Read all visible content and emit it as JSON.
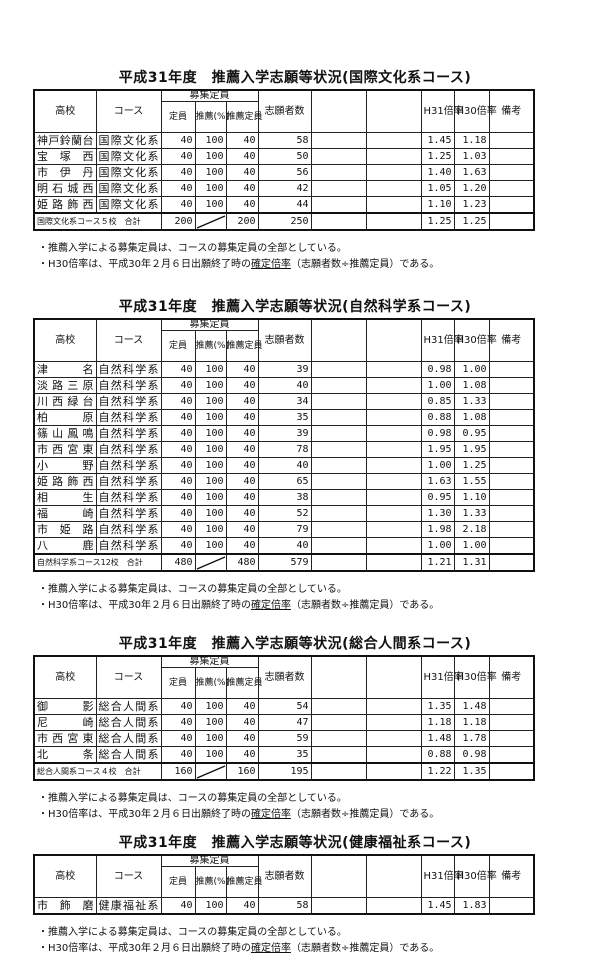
{
  "header": {
    "school": "高校",
    "course": "コース",
    "recruit_group": "募集定員",
    "capacity": "定員",
    "rec_pct": "推薦(%)",
    "rec_capacity": "推薦定員",
    "applicants": "志願者数",
    "h31": "H31倍率",
    "h30": "H30倍率",
    "remarks": "備考"
  },
  "notes": {
    "line1": "・推薦入学による募集定員は、コースの募集定員の全部としている。",
    "line2_prefix": "・H30倍率は、平成30年２月６日出願終了時の",
    "line2_underlined": "確定倍率",
    "line2_suffix": "（志願者数÷推薦定員）である。"
  },
  "sections": [
    {
      "title": "平成31年度　推薦入学志願等状況(国際文化系コース)",
      "rows": [
        {
          "school": "神戸鈴蘭台",
          "course": "国際文化系",
          "capacity": "40",
          "rec_pct": "100",
          "rec_capacity": "40",
          "applicants": "58",
          "h31": "1.45",
          "h30": "1.18"
        },
        {
          "school": "宝塚西",
          "course": "国際文化系",
          "capacity": "40",
          "rec_pct": "100",
          "rec_capacity": "40",
          "applicants": "50",
          "h31": "1.25",
          "h30": "1.03"
        },
        {
          "school": "市伊丹",
          "course": "国際文化系",
          "capacity": "40",
          "rec_pct": "100",
          "rec_capacity": "40",
          "applicants": "56",
          "h31": "1.40",
          "h30": "1.63"
        },
        {
          "school": "明石城西",
          "course": "国際文化系",
          "capacity": "40",
          "rec_pct": "100",
          "rec_capacity": "40",
          "applicants": "42",
          "h31": "1.05",
          "h30": "1.20"
        },
        {
          "school": "姫路飾西",
          "course": "国際文化系",
          "capacity": "40",
          "rec_pct": "100",
          "rec_capacity": "40",
          "applicants": "44",
          "h31": "1.10",
          "h30": "1.23"
        }
      ],
      "total": {
        "label": "国際文化系コース５校　合計",
        "capacity": "200",
        "rec_capacity": "200",
        "applicants": "250",
        "h31": "1.25",
        "h30": "1.25"
      }
    },
    {
      "title": "平成31年度　推薦入学志願等状況(自然科学系コース)",
      "rows": [
        {
          "school": "津名",
          "course": "自然科学系",
          "capacity": "40",
          "rec_pct": "100",
          "rec_capacity": "40",
          "applicants": "39",
          "h31": "0.98",
          "h30": "1.00"
        },
        {
          "school": "淡路三原",
          "course": "自然科学系",
          "capacity": "40",
          "rec_pct": "100",
          "rec_capacity": "40",
          "applicants": "40",
          "h31": "1.00",
          "h30": "1.08"
        },
        {
          "school": "川西緑台",
          "course": "自然科学系",
          "capacity": "40",
          "rec_pct": "100",
          "rec_capacity": "40",
          "applicants": "34",
          "h31": "0.85",
          "h30": "1.33"
        },
        {
          "school": "柏原",
          "course": "自然科学系",
          "capacity": "40",
          "rec_pct": "100",
          "rec_capacity": "40",
          "applicants": "35",
          "h31": "0.88",
          "h30": "1.08"
        },
        {
          "school": "篠山鳳鳴",
          "course": "自然科学系",
          "capacity": "40",
          "rec_pct": "100",
          "rec_capacity": "40",
          "applicants": "39",
          "h31": "0.98",
          "h30": "0.95"
        },
        {
          "school": "市西宮東",
          "course": "自然科学系",
          "capacity": "40",
          "rec_pct": "100",
          "rec_capacity": "40",
          "applicants": "78",
          "h31": "1.95",
          "h30": "1.95"
        },
        {
          "school": "小野",
          "course": "自然科学系",
          "capacity": "40",
          "rec_pct": "100",
          "rec_capacity": "40",
          "applicants": "40",
          "h31": "1.00",
          "h30": "1.25"
        },
        {
          "school": "姫路飾西",
          "course": "自然科学系",
          "capacity": "40",
          "rec_pct": "100",
          "rec_capacity": "40",
          "applicants": "65",
          "h31": "1.63",
          "h30": "1.55"
        },
        {
          "school": "相生",
          "course": "自然科学系",
          "capacity": "40",
          "rec_pct": "100",
          "rec_capacity": "40",
          "applicants": "38",
          "h31": "0.95",
          "h30": "1.10"
        },
        {
          "school": "福崎",
          "course": "自然科学系",
          "capacity": "40",
          "rec_pct": "100",
          "rec_capacity": "40",
          "applicants": "52",
          "h31": "1.30",
          "h30": "1.33"
        },
        {
          "school": "市姫路",
          "course": "自然科学系",
          "capacity": "40",
          "rec_pct": "100",
          "rec_capacity": "40",
          "applicants": "79",
          "h31": "1.98",
          "h30": "2.18"
        },
        {
          "school": "八鹿",
          "course": "自然科学系",
          "capacity": "40",
          "rec_pct": "100",
          "rec_capacity": "40",
          "applicants": "40",
          "h31": "1.00",
          "h30": "1.00"
        }
      ],
      "total": {
        "label": "自然科学系コース12校　合計",
        "capacity": "480",
        "rec_capacity": "480",
        "applicants": "579",
        "h31": "1.21",
        "h30": "1.31"
      }
    },
    {
      "title": "平成31年度　推薦入学志願等状況(総合人間系コース)",
      "rows": [
        {
          "school": "御影",
          "course": "総合人間系",
          "capacity": "40",
          "rec_pct": "100",
          "rec_capacity": "40",
          "applicants": "54",
          "h31": "1.35",
          "h30": "1.48"
        },
        {
          "school": "尼崎",
          "course": "総合人間系",
          "capacity": "40",
          "rec_pct": "100",
          "rec_capacity": "40",
          "applicants": "47",
          "h31": "1.18",
          "h30": "1.18"
        },
        {
          "school": "市西宮東",
          "course": "総合人間系",
          "capacity": "40",
          "rec_pct": "100",
          "rec_capacity": "40",
          "applicants": "59",
          "h31": "1.48",
          "h30": "1.78"
        },
        {
          "school": "北条",
          "course": "総合人間系",
          "capacity": "40",
          "rec_pct": "100",
          "rec_capacity": "40",
          "applicants": "35",
          "h31": "0.88",
          "h30": "0.98"
        }
      ],
      "total": {
        "label": "総合人間系コース４校　合計",
        "capacity": "160",
        "rec_capacity": "160",
        "applicants": "195",
        "h31": "1.22",
        "h30": "1.35"
      }
    },
    {
      "title": "平成31年度　推薦入学志願等状況(健康福祉系コース)",
      "rows": [
        {
          "school": "市飾磨",
          "course": "健康福祉系",
          "capacity": "40",
          "rec_pct": "100",
          "rec_capacity": "40",
          "applicants": "58",
          "h31": "1.45",
          "h30": "1.83"
        }
      ]
    }
  ]
}
